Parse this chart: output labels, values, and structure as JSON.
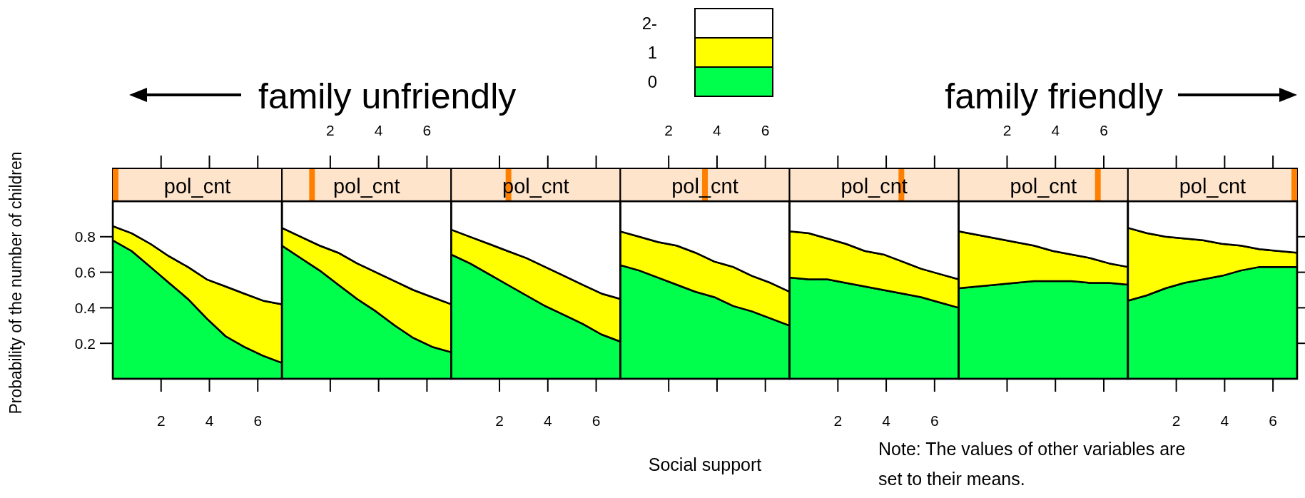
{
  "chart_data": [
    {
      "type": "area",
      "title": "pol_cnt",
      "ylabel": "Probability of the number of children",
      "annotations": [
        "family unfriendly"
      ],
      "legend": "top",
      "stacked": true,
      "x": [
        0,
        0.78,
        1.56,
        2.33,
        3.11,
        3.89,
        4.67,
        5.44,
        6.22,
        7
      ],
      "xlim": [
        0,
        7
      ],
      "xticks": [
        2,
        4,
        6
      ],
      "ylim": [
        0,
        1
      ],
      "yticks": [
        0.2,
        0.4,
        0.6,
        0.8
      ],
      "series": [
        {
          "name": "0",
          "color": "#00ff4c",
          "values": [
            0.78,
            0.72,
            0.63,
            0.54,
            0.45,
            0.34,
            0.24,
            0.18,
            0.13,
            0.09
          ]
        },
        {
          "name": "1",
          "color": "#ffff00",
          "values": [
            0.08,
            0.1,
            0.13,
            0.15,
            0.18,
            0.22,
            0.28,
            0.3,
            0.31,
            0.33
          ]
        },
        {
          "name": "2-",
          "color": "#ffffff",
          "values": [
            0.14,
            0.18,
            0.24,
            0.31,
            0.37,
            0.44,
            0.48,
            0.52,
            0.56,
            0.58
          ]
        }
      ]
    },
    {
      "type": "area",
      "title": "pol_cnt",
      "stacked": true,
      "tick_labels": "x",
      "x": [
        0,
        0.78,
        1.56,
        2.33,
        3.11,
        3.89,
        4.67,
        5.44,
        6.22,
        7
      ],
      "xlim": [
        0,
        7
      ],
      "xticks": [
        2,
        4,
        6
      ],
      "ylim": [
        0,
        1
      ],
      "series": [
        {
          "color": "#00ff4c",
          "values": [
            0.75,
            0.68,
            0.61,
            0.53,
            0.45,
            0.38,
            0.3,
            0.23,
            0.18,
            0.15
          ]
        },
        {
          "color": "#ffff00",
          "values": [
            0.1,
            0.12,
            0.14,
            0.18,
            0.2,
            0.22,
            0.25,
            0.27,
            0.28,
            0.27
          ]
        },
        {
          "color": "#ffffff",
          "values": [
            0.15,
            0.2,
            0.25,
            0.29,
            0.35,
            0.4,
            0.45,
            0.5,
            0.54,
            0.58
          ]
        }
      ]
    },
    {
      "type": "area",
      "title": "pol_cnt",
      "stacked": true,
      "tick_labels": "x",
      "x": [
        0,
        0.78,
        1.56,
        2.33,
        3.11,
        3.89,
        4.67,
        5.44,
        6.22,
        7
      ],
      "xlim": [
        0,
        7
      ],
      "xticks": [
        2,
        4,
        6
      ],
      "ylim": [
        0,
        1
      ],
      "series": [
        {
          "color": "#00ff4c",
          "values": [
            0.7,
            0.65,
            0.59,
            0.53,
            0.47,
            0.41,
            0.36,
            0.31,
            0.25,
            0.21
          ]
        },
        {
          "color": "#ffff00",
          "values": [
            0.14,
            0.15,
            0.17,
            0.19,
            0.21,
            0.22,
            0.22,
            0.22,
            0.23,
            0.24
          ]
        },
        {
          "color": "#ffffff",
          "values": [
            0.16,
            0.2,
            0.24,
            0.28,
            0.32,
            0.37,
            0.42,
            0.47,
            0.52,
            0.55
          ]
        }
      ]
    },
    {
      "type": "area",
      "title": "pol_cnt",
      "xlabel": "Social support",
      "stacked": true,
      "tick_labels": "x",
      "x": [
        0,
        0.78,
        1.56,
        2.33,
        3.11,
        3.89,
        4.67,
        5.44,
        6.22,
        7
      ],
      "xlim": [
        0,
        7
      ],
      "xticks": [
        2,
        4,
        6
      ],
      "ylim": [
        0,
        1
      ],
      "series": [
        {
          "color": "#00ff4c",
          "values": [
            0.64,
            0.61,
            0.57,
            0.53,
            0.49,
            0.46,
            0.41,
            0.38,
            0.34,
            0.3
          ]
        },
        {
          "color": "#ffff00",
          "values": [
            0.19,
            0.19,
            0.2,
            0.22,
            0.22,
            0.2,
            0.22,
            0.2,
            0.2,
            0.19
          ]
        },
        {
          "color": "#ffffff",
          "values": [
            0.17,
            0.2,
            0.23,
            0.25,
            0.29,
            0.34,
            0.37,
            0.42,
            0.46,
            0.51
          ]
        }
      ]
    },
    {
      "type": "area",
      "title": "pol_cnt",
      "stacked": true,
      "tick_labels": "x",
      "x": [
        0,
        0.78,
        1.56,
        2.33,
        3.11,
        3.89,
        4.67,
        5.44,
        6.22,
        7
      ],
      "xlim": [
        0,
        7
      ],
      "xticks": [
        2,
        4,
        6
      ],
      "ylim": [
        0,
        1
      ],
      "series": [
        {
          "color": "#00ff4c",
          "values": [
            0.57,
            0.56,
            0.56,
            0.54,
            0.52,
            0.5,
            0.48,
            0.46,
            0.43,
            0.4
          ]
        },
        {
          "color": "#ffff00",
          "values": [
            0.26,
            0.26,
            0.23,
            0.22,
            0.2,
            0.2,
            0.18,
            0.16,
            0.16,
            0.16
          ]
        },
        {
          "color": "#ffffff",
          "values": [
            0.17,
            0.18,
            0.21,
            0.24,
            0.28,
            0.3,
            0.34,
            0.38,
            0.41,
            0.44
          ]
        }
      ]
    },
    {
      "type": "area",
      "title": "pol_cnt",
      "stacked": true,
      "tick_labels": "x",
      "x": [
        0,
        0.78,
        1.56,
        2.33,
        3.11,
        3.89,
        4.67,
        5.44,
        6.22,
        7
      ],
      "xlim": [
        0,
        7
      ],
      "xticks": [
        2,
        4,
        6
      ],
      "ylim": [
        0,
        1
      ],
      "series": [
        {
          "color": "#00ff4c",
          "values": [
            0.51,
            0.52,
            0.53,
            0.54,
            0.55,
            0.55,
            0.55,
            0.54,
            0.54,
            0.53
          ]
        },
        {
          "color": "#ffff00",
          "values": [
            0.32,
            0.29,
            0.26,
            0.23,
            0.2,
            0.17,
            0.15,
            0.14,
            0.11,
            0.1
          ]
        },
        {
          "color": "#ffffff",
          "values": [
            0.17,
            0.19,
            0.21,
            0.23,
            0.25,
            0.28,
            0.3,
            0.32,
            0.35,
            0.37
          ]
        }
      ]
    },
    {
      "type": "area",
      "title": "pol_cnt",
      "annotations": [
        "family friendly",
        "Note: The values of other variables are set to their means."
      ],
      "stacked": true,
      "tick_labels": "x",
      "x": [
        0,
        0.78,
        1.56,
        2.33,
        3.11,
        3.89,
        4.67,
        5.44,
        6.22,
        7
      ],
      "xlim": [
        0,
        7
      ],
      "xticks": [
        2,
        4,
        6
      ],
      "ylim": [
        0,
        1
      ],
      "yticks": [
        {
          "value": 0.2,
          "label": null
        },
        {
          "value": 0.4,
          "label": null
        },
        {
          "value": 0.6,
          "label": null
        },
        {
          "value": 0.8,
          "label": null
        }
      ],
      "series": [
        {
          "color": "#00ff4c",
          "values": [
            0.44,
            0.47,
            0.51,
            0.54,
            0.56,
            0.58,
            0.61,
            0.63,
            0.63,
            0.63
          ]
        },
        {
          "color": "#ffff00",
          "values": [
            0.41,
            0.35,
            0.29,
            0.25,
            0.22,
            0.18,
            0.14,
            0.1,
            0.09,
            0.08
          ]
        },
        {
          "color": "#ffffff",
          "values": [
            0.15,
            0.18,
            0.2,
            0.21,
            0.22,
            0.24,
            0.25,
            0.27,
            0.28,
            0.29
          ]
        }
      ]
    }
  ]
}
